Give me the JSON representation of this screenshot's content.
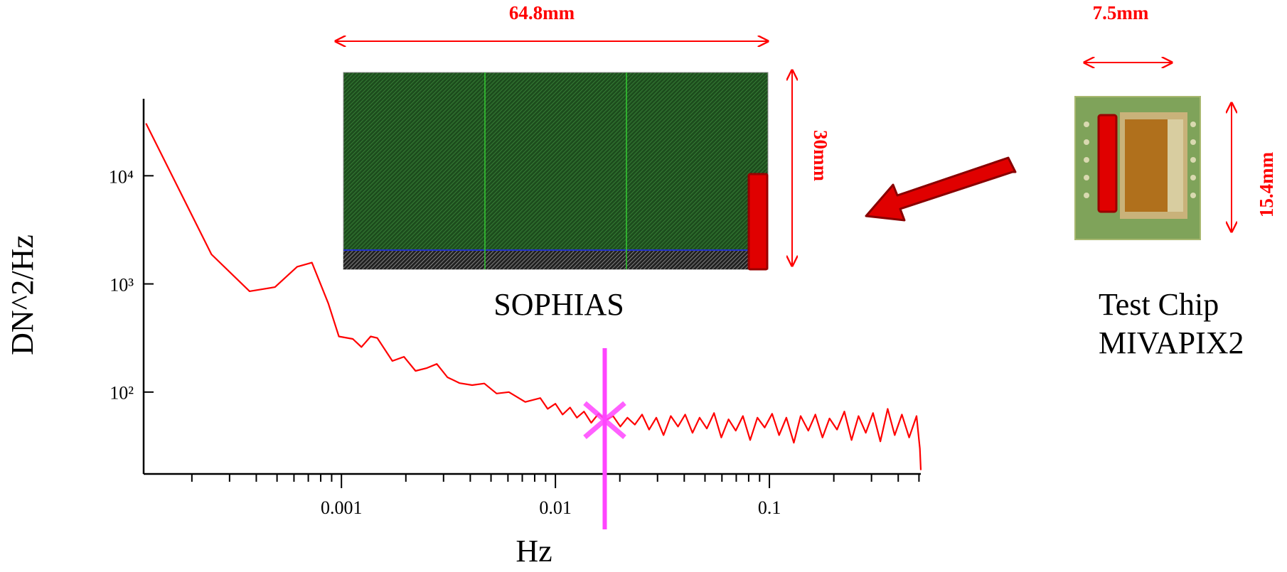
{
  "chart_data": {
    "type": "line",
    "x_label": "Hz",
    "y_label": "DN^2/Hz",
    "xscale": "log",
    "yscale": "log",
    "xlim": [
      0.000119,
      0.51
    ],
    "ylim": [
      17.5,
      51500
    ],
    "xticks": [
      {
        "value": 0.001,
        "label": "0.001"
      },
      {
        "value": 0.01,
        "label": "0.01"
      },
      {
        "value": 0.1,
        "label": "0.1"
      }
    ],
    "xminor_ticks": [
      0.0002,
      0.0003,
      0.0004,
      0.0005,
      0.0006,
      0.0007,
      0.0008,
      0.0009,
      0.002,
      0.003,
      0.004,
      0.005,
      0.006,
      0.007,
      0.008,
      0.009,
      0.02,
      0.03,
      0.04,
      0.05,
      0.06,
      0.07,
      0.08,
      0.09,
      0.2,
      0.3,
      0.4,
      0.5
    ],
    "yticks": [
      {
        "value": 100,
        "label": "10²"
      },
      {
        "value": 1000,
        "label": "10³"
      },
      {
        "value": 10000,
        "label": "10⁴"
      }
    ],
    "x": [
      0.000122,
      0.000247,
      0.000372,
      0.000489,
      0.000621,
      0.000728,
      0.000869,
      0.000973,
      0.00113,
      0.00124,
      0.00137,
      0.00147,
      0.00173,
      0.00196,
      0.00222,
      0.00251,
      0.00279,
      0.00313,
      0.00357,
      0.00408,
      0.00465,
      0.00531,
      0.00606,
      0.00723,
      0.0085,
      0.0092,
      0.01,
      0.0108,
      0.0117,
      0.0126,
      0.0136,
      0.0147,
      0.0159,
      0.0172,
      0.0186,
      0.0201,
      0.0217,
      0.0235,
      0.0254,
      0.0274,
      0.0296,
      0.032,
      0.0346,
      0.0374,
      0.0404,
      0.0437,
      0.0472,
      0.051,
      0.0551,
      0.0596,
      0.0644,
      0.0696,
      0.0752,
      0.0813,
      0.0879,
      0.095,
      0.103,
      0.111,
      0.12,
      0.13,
      0.14,
      0.152,
      0.164,
      0.177,
      0.191,
      0.207,
      0.224,
      0.242,
      0.261,
      0.282,
      0.305,
      0.33,
      0.357,
      0.385,
      0.416,
      0.45,
      0.487,
      0.505,
      0.51
    ],
    "series": [
      {
        "color": "#ff0000",
        "values": [
          30500,
          1875,
          855,
          933,
          1442,
          1574,
          658,
          327,
          310,
          261,
          327,
          316,
          194,
          212,
          157,
          167,
          182,
          137,
          121,
          116,
          120,
          97,
          100,
          81,
          88,
          70,
          78,
          62,
          72,
          58,
          66,
          52,
          63,
          55,
          60,
          48,
          58,
          50,
          62,
          45,
          58,
          40,
          60,
          48,
          62,
          42,
          58,
          46,
          64,
          38,
          56,
          44,
          60,
          36,
          58,
          47,
          63,
          40,
          58,
          34,
          60,
          44,
          62,
          38,
          57,
          45,
          66,
          36,
          60,
          42,
          64,
          35,
          70,
          40,
          62,
          38,
          60,
          30,
          19
        ]
      }
    ],
    "marker": {
      "x": 0.017,
      "y": 55,
      "color": "#ff44ff"
    }
  },
  "diagram": {
    "sophias": {
      "label": "SOPHIAS",
      "width": "64.8mm",
      "height": "30mm"
    },
    "test_chip": {
      "label": [
        "Test Chip",
        "MIVAPIX2"
      ],
      "width": "7.5mm",
      "height": "15.4mm"
    }
  }
}
